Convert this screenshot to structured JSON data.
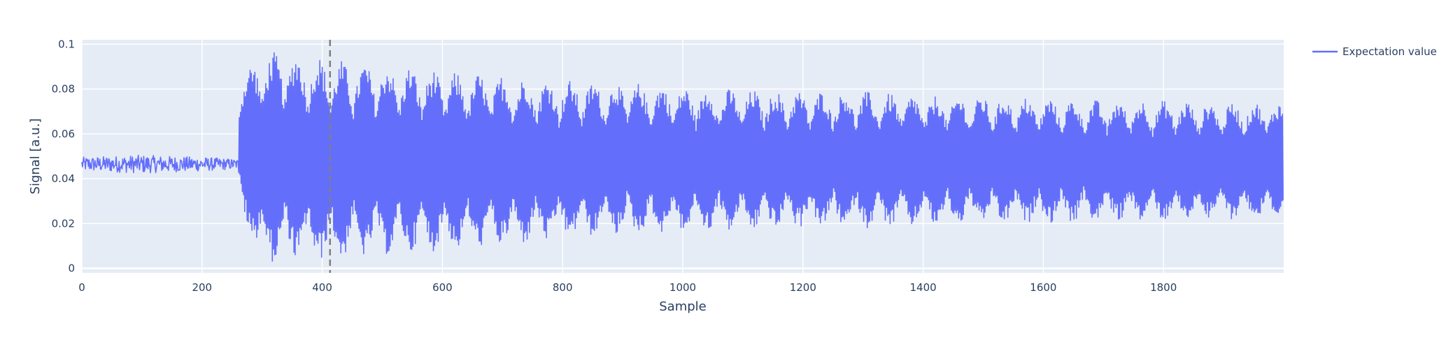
{
  "chart_data": {
    "type": "line",
    "title": "",
    "xlabel": "Sample",
    "ylabel": "Signal [a.u.]",
    "xlim": [
      0,
      2000
    ],
    "ylim": [
      -0.002,
      0.102
    ],
    "xticks": [
      0,
      200,
      400,
      600,
      800,
      1000,
      1200,
      1400,
      1600,
      1800
    ],
    "xtick_labels": [
      "0",
      "200",
      "400",
      "600",
      "800",
      "1000",
      "1200",
      "1400",
      "1600",
      "1800"
    ],
    "yticks": [
      0,
      0.02,
      0.04,
      0.06,
      0.08,
      0.1
    ],
    "ytick_labels": [
      "0",
      "0.02",
      "0.04",
      "0.06",
      "0.08",
      "0.1"
    ],
    "grid": true,
    "legend_position": "top-right",
    "background_color": "#e5ecf6",
    "series": [
      {
        "name": "Expectation value",
        "color": "#636efa",
        "baseline": 0.047,
        "sample_count": 2000,
        "description_points": {
          "x": [
            0,
            100,
            200,
            260,
            262,
            300,
            350,
            400,
            450,
            500,
            550,
            600,
            700,
            800,
            900,
            1000,
            1100,
            1200,
            1300,
            1400,
            1500,
            1600,
            1700,
            1800,
            1900,
            2000
          ],
          "upper_envelope": [
            0.05,
            0.051,
            0.05,
            0.049,
            0.085,
            0.097,
            0.096,
            0.094,
            0.092,
            0.091,
            0.09,
            0.088,
            0.086,
            0.084,
            0.083,
            0.081,
            0.08,
            0.079,
            0.079,
            0.077,
            0.077,
            0.076,
            0.075,
            0.075,
            0.074,
            0.074
          ],
          "lower_envelope": [
            0.043,
            0.042,
            0.043,
            0.044,
            0.025,
            0.002,
            0.004,
            0.003,
            0.005,
            0.006,
            0.007,
            0.008,
            0.01,
            0.013,
            0.015,
            0.016,
            0.017,
            0.018,
            0.018,
            0.019,
            0.02,
            0.02,
            0.021,
            0.021,
            0.022,
            0.022
          ]
        }
      }
    ],
    "vline": {
      "x": 413,
      "style": "dashed",
      "color": "#7f7f7f"
    }
  }
}
